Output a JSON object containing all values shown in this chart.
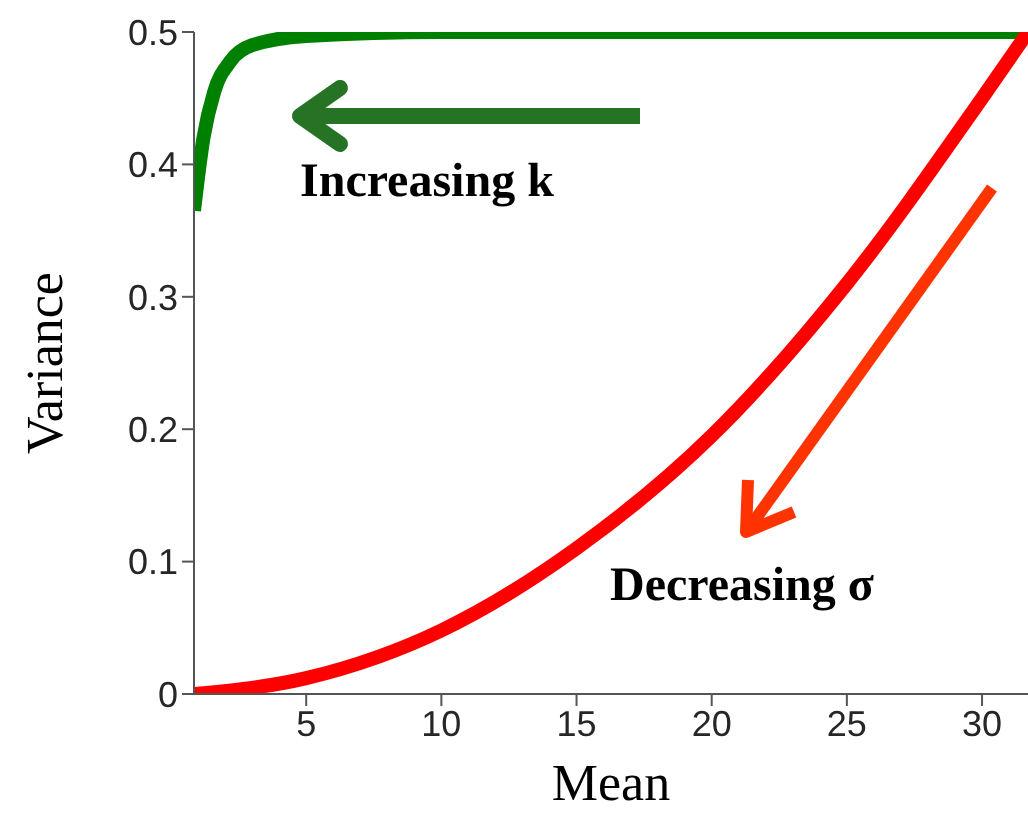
{
  "chart_data": {
    "type": "line",
    "xlabel": "Mean",
    "ylabel": "Variance",
    "xlim": [
      0.85,
      31.7
    ],
    "ylim": [
      0,
      0.5
    ],
    "xticks": [
      5,
      10,
      15,
      20,
      25,
      30
    ],
    "yticks": [
      0,
      0.1,
      0.2,
      0.3,
      0.4,
      0.5
    ],
    "marker": "none",
    "line_style": "solid",
    "series": [
      {
        "color": "#008000",
        "x": [
          0.85,
          1.2,
          1.6,
          2.2,
          3,
          5,
          10,
          31.7
        ],
        "values": [
          0.365,
          0.42,
          0.455,
          0.478,
          0.49,
          0.497,
          0.5,
          0.5
        ]
      },
      {
        "color": "#ff0000",
        "x": [
          0.85,
          5,
          10,
          15,
          20,
          25,
          30,
          31.7
        ],
        "values": [
          0,
          0.012,
          0.048,
          0.11,
          0.195,
          0.31,
          0.45,
          0.5
        ]
      }
    ],
    "annotations": [
      "Increasing k",
      "Decreasing σ"
    ]
  }
}
